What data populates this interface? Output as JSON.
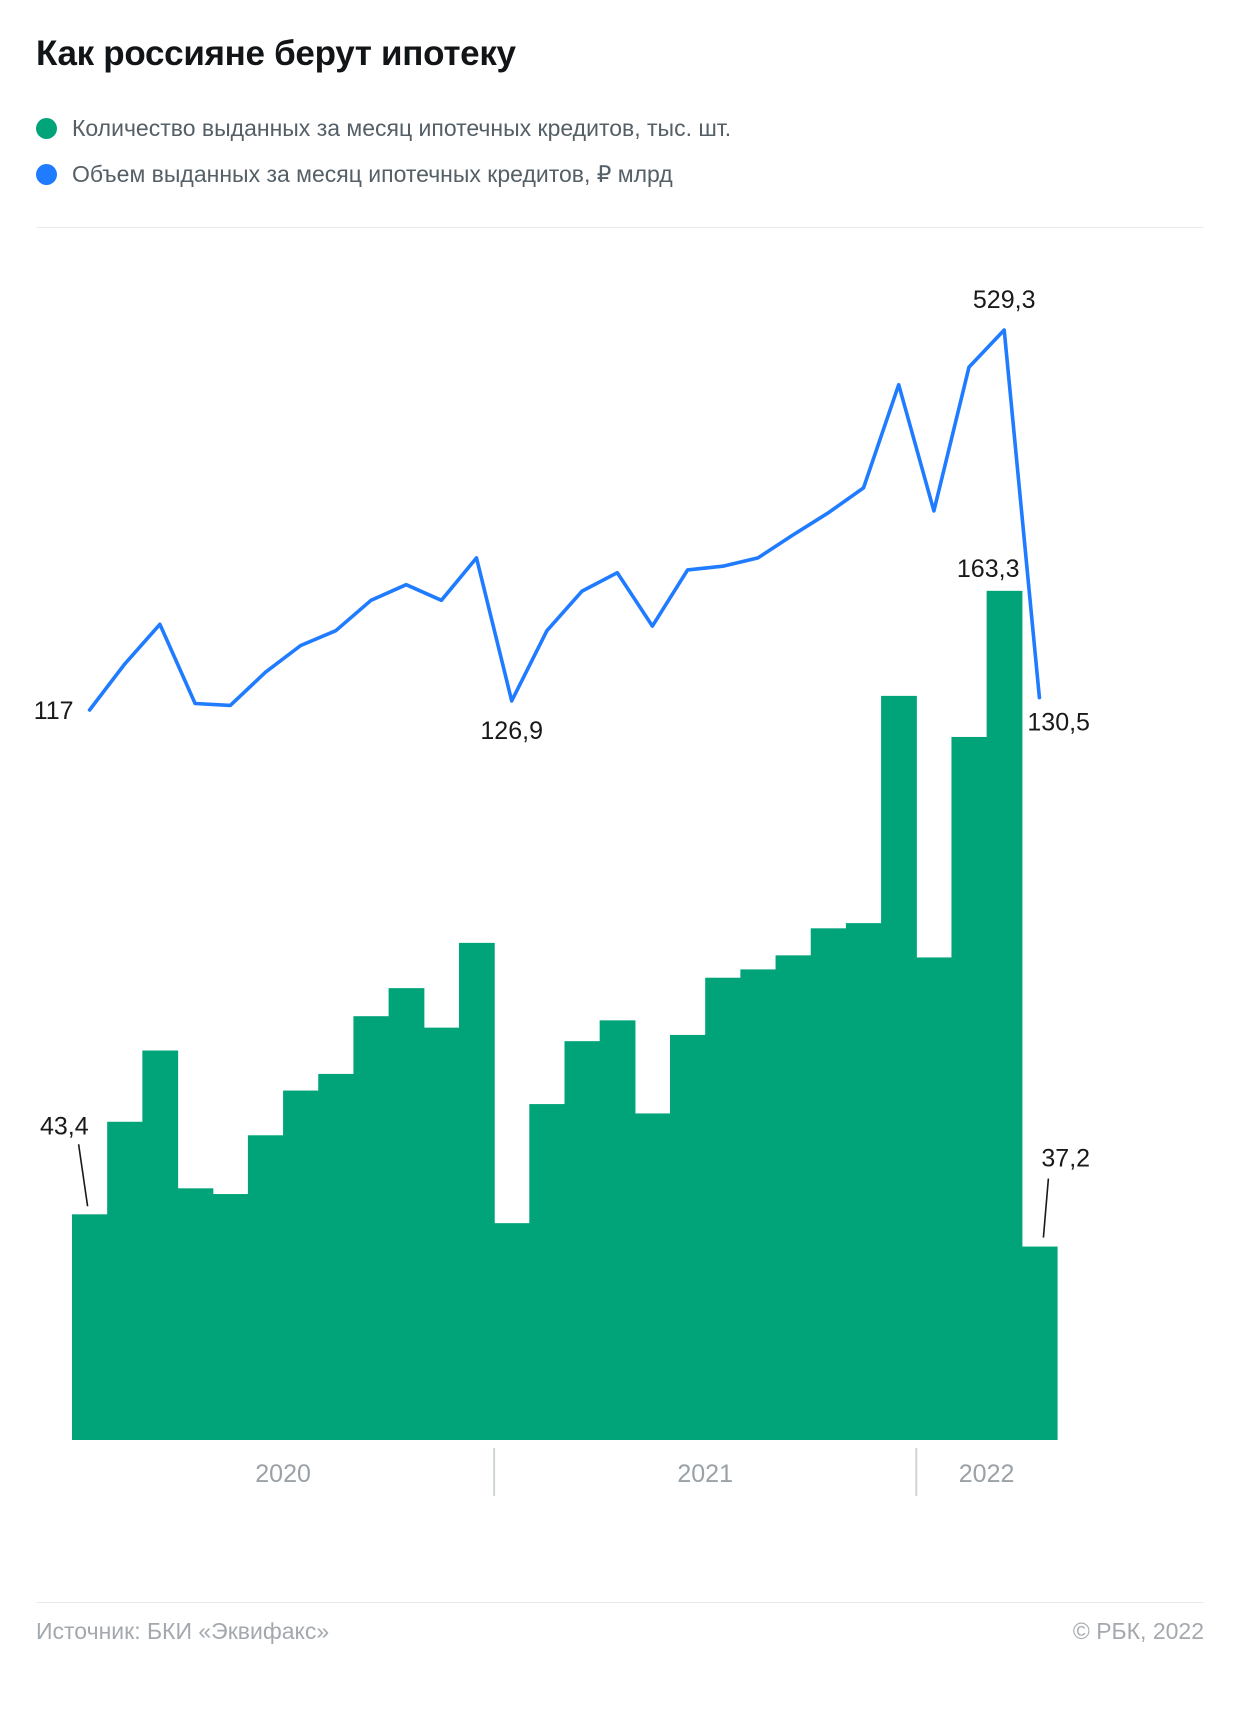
{
  "title": "Как россияне берут ипотеку",
  "legend": [
    {
      "label": "Количество выданных за месяц ипотечных кредитов, тыс. шт.",
      "color": "#00a478"
    },
    {
      "label": "Объем выданных за месяц ипотечных кредитов, ₽ млрд",
      "color": "#1f7bff"
    }
  ],
  "footer": {
    "source": "Источник: БКИ «Эквифакс»",
    "copyright": "© РБК, 2022"
  },
  "chart_data": {
    "type": "combo-bar-line",
    "x_tick_labels": [
      "2020",
      "2021",
      "2022"
    ],
    "x_months": [
      "2020-01",
      "2020-02",
      "2020-03",
      "2020-04",
      "2020-05",
      "2020-06",
      "2020-07",
      "2020-08",
      "2020-09",
      "2020-10",
      "2020-11",
      "2020-12",
      "2021-01",
      "2021-02",
      "2021-03",
      "2021-04",
      "2021-05",
      "2021-06",
      "2021-07",
      "2021-08",
      "2021-09",
      "2021-10",
      "2021-11",
      "2021-12",
      "2022-01",
      "2022-02",
      "2022-03",
      "2022-04"
    ],
    "series": [
      {
        "name": "count_mortgages",
        "type": "bar",
        "unit": "тыс. шт.",
        "color": "#00a478",
        "values": [
          43.4,
          61.2,
          74.9,
          48.4,
          47.3,
          58.6,
          67.2,
          70.4,
          81.5,
          86.9,
          79.3,
          95.6,
          41.7,
          64.6,
          76.7,
          80.7,
          62.8,
          77.9,
          88.9,
          90.5,
          93.2,
          98.4,
          99.4,
          143.1,
          92.8,
          135.2,
          163.3,
          37.2
        ]
      },
      {
        "name": "volume_mortgages",
        "type": "line",
        "unit": "₽ млрд",
        "color": "#1f7bff",
        "values": [
          117,
          167,
          210,
          124,
          122,
          158,
          187,
          203,
          236,
          253,
          236,
          282,
          126.9,
          203,
          246,
          266,
          208,
          269,
          273,
          282,
          307,
          331,
          358,
          470,
          333,
          489,
          529.3,
          130.5
        ]
      }
    ],
    "annotations": [
      {
        "text": "117",
        "series": "line",
        "index": 0,
        "placement": "left"
      },
      {
        "text": "126,9",
        "series": "line",
        "index": 12,
        "placement": "below"
      },
      {
        "text": "529,3",
        "series": "line",
        "index": 26,
        "placement": "above"
      },
      {
        "text": "130,5",
        "series": "line",
        "index": 27,
        "placement": "below-right"
      },
      {
        "text": "43,4",
        "series": "bar",
        "index": 0,
        "placement": "callout-left"
      },
      {
        "text": "163,3",
        "series": "bar",
        "index": 26,
        "placement": "above"
      },
      {
        "text": "37,2",
        "series": "bar",
        "index": 27,
        "placement": "callout-right"
      }
    ],
    "bar_ylim": [
      0,
      170
    ],
    "line_ylim": [
      0,
      560
    ],
    "grid": "off",
    "legend_position": "top-left"
  }
}
